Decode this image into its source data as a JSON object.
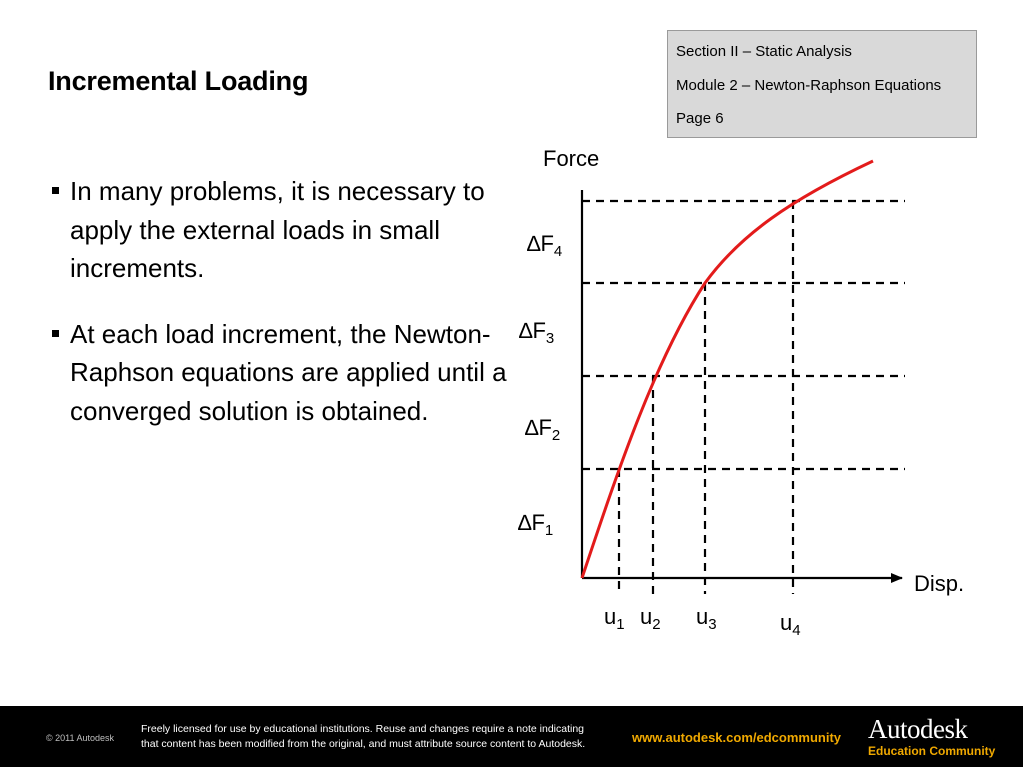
{
  "slide": {
    "title": "Incremental Loading",
    "info_box": [
      "Section II – Static Analysis",
      "Module 2 – Newton-Raphson Equations",
      "Page 6"
    ],
    "bullets": [
      "In many problems, it is necessary to apply the external loads in small increments.",
      "At each load increment, the Newton-Raphson equations are applied until a converged solution is obtained."
    ]
  },
  "diagram": {
    "y_axis_label": "Force",
    "x_axis_label": "Disp.",
    "load_increments": [
      {
        "symbol": "∆F",
        "sub": "1"
      },
      {
        "symbol": "∆F",
        "sub": "2"
      },
      {
        "symbol": "∆F",
        "sub": "3"
      },
      {
        "symbol": "∆F",
        "sub": "4"
      }
    ],
    "displacements": [
      {
        "symbol": "u",
        "sub": "1"
      },
      {
        "symbol": "u",
        "sub": "2"
      },
      {
        "symbol": "u",
        "sub": "3"
      },
      {
        "symbol": "u",
        "sub": "4"
      }
    ],
    "curve_color": "#e31b1b",
    "axis_color": "#000000"
  },
  "footer": {
    "copyright": "© 2011 Autodesk",
    "license_line1": "Freely licensed for use by educational institutions. Reuse and changes require a note indicating",
    "license_line2": "that content has been modified from the original, and must attribute source content to Autodesk.",
    "url": "www.autodesk.com/edcommunity",
    "brand": "Autodesk",
    "brand_sub": "Education Community"
  }
}
